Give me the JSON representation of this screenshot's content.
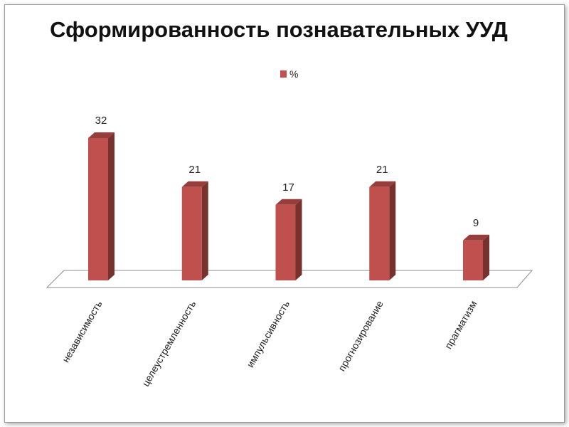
{
  "chart_data": {
    "type": "bar",
    "title": "Сформированность познавательных УУД",
    "categories": [
      "независимость",
      "целеустремленность",
      "импульсивность",
      "прогнозирование",
      "прагматизм"
    ],
    "series": [
      {
        "name": "%",
        "values": [
          32,
          21,
          17,
          21,
          9
        ],
        "color": "#c0504d"
      }
    ],
    "data_labels": [
      "32",
      "21",
      "17",
      "21",
      "9"
    ],
    "ylim": [
      0,
      35
    ],
    "grid": false,
    "legend": "top-center",
    "style": "3d-column"
  }
}
